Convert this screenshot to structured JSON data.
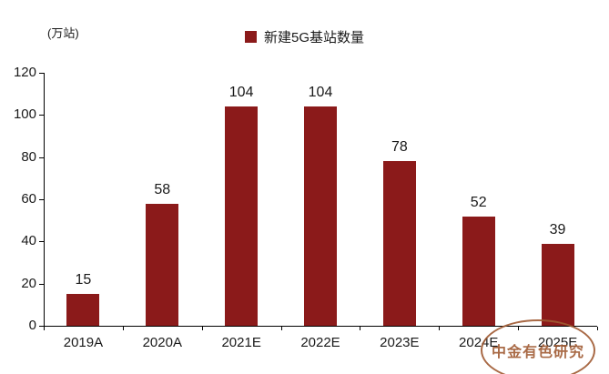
{
  "chart_data": {
    "type": "bar",
    "title": "",
    "unit_label": "(万站)",
    "legend": "新建5G基站数量",
    "legend_position": "top-center",
    "categories": [
      "2019A",
      "2020A",
      "2021E",
      "2022E",
      "2023E",
      "2024E",
      "2025E"
    ],
    "values": [
      15,
      58,
      104,
      104,
      78,
      52,
      39
    ],
    "xlabel": "",
    "ylabel": "",
    "ylim": [
      0,
      120
    ],
    "ytick_step": 20,
    "yticks": [
      0,
      20,
      40,
      60,
      80,
      100,
      120
    ],
    "grid": false,
    "bar_color": "#8B1A1A",
    "axis_color": "#000000",
    "text_color": "#1a1a1a"
  },
  "watermark": {
    "text": "中金有色研究",
    "color": "#A05A32"
  }
}
